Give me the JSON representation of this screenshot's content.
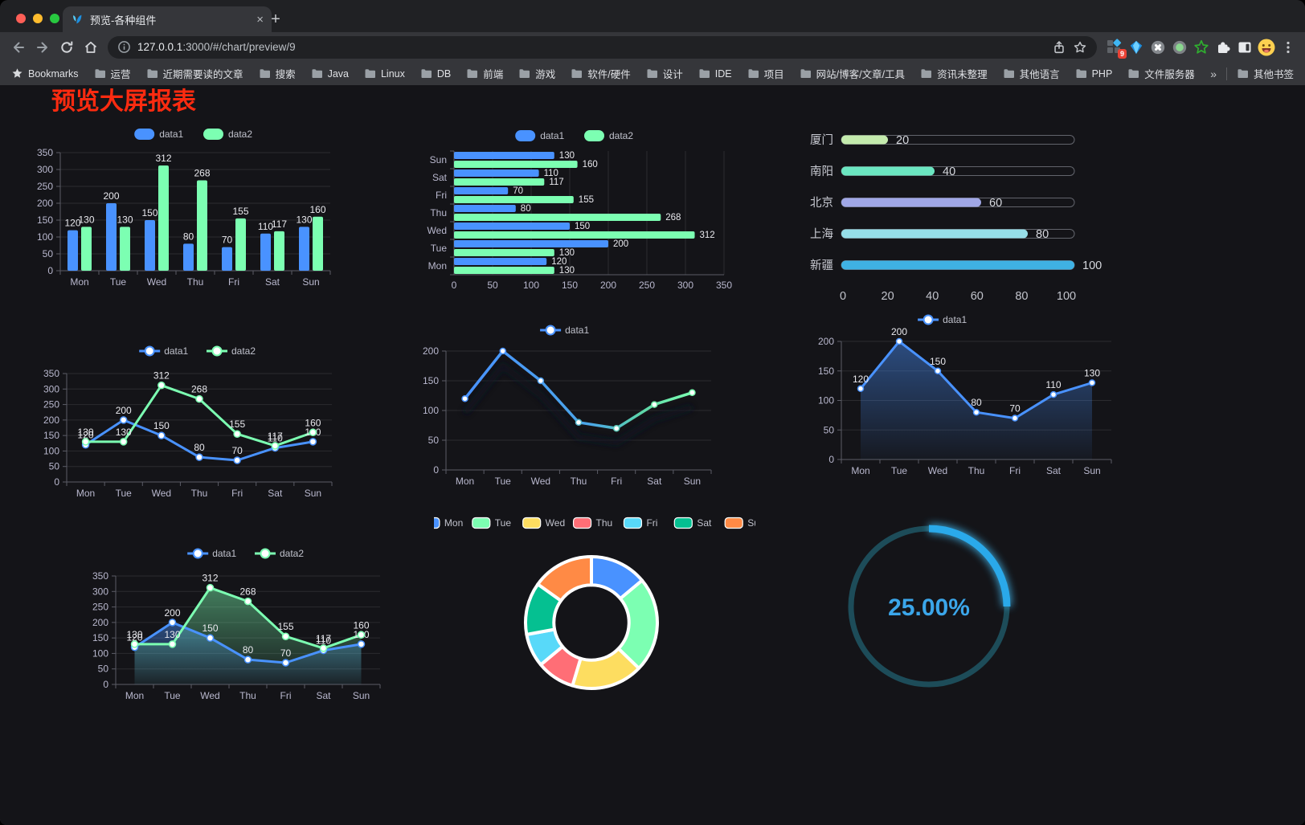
{
  "browser": {
    "tab": {
      "title": "预览-各种组件",
      "close_glyph": "×"
    },
    "new_tab_glyph": "+",
    "url_host": "127.0.0.1",
    "url_path": ":3000/#/chart/preview/9",
    "extension_badge": "9",
    "bookmarks_label": "Bookmarks",
    "bookmarks": [
      "运营",
      "近期需要读的文章",
      "搜索",
      "Java",
      "Linux",
      "DB",
      "前端",
      "游戏",
      "软件/硬件",
      "设计",
      "IDE",
      "项目",
      "网站/博客/文章/工具",
      "资讯未整理",
      "其他语言",
      "PHP",
      "文件服务器"
    ],
    "bookmarks_overflow": "»",
    "other_bookmarks": "其他书签"
  },
  "page": {
    "title": "预览大屏报表",
    "title_color": "#fd2b10"
  },
  "palette": {
    "data1": "#4992ff",
    "data2": "#7cffb2",
    "axis_text": "#b9b8ce",
    "value_text": "#e9e9ee",
    "grid": "rgba(255,255,255,0.10)",
    "axis_line": "#6e7079"
  },
  "chart_data": [
    {
      "id": "bar-vertical-grouped",
      "type": "bar",
      "categories": [
        "Mon",
        "Tue",
        "Wed",
        "Thu",
        "Fri",
        "Sat",
        "Sun"
      ],
      "series": [
        {
          "name": "data1",
          "color": "#4992ff",
          "values": [
            120,
            200,
            150,
            80,
            70,
            110,
            130
          ]
        },
        {
          "name": "data2",
          "color": "#7cffb2",
          "values": [
            130,
            130,
            312,
            268,
            155,
            117,
            160
          ]
        }
      ],
      "ylim": [
        0,
        350
      ],
      "ytick_step": 50,
      "legend_position": "top"
    },
    {
      "id": "bar-horizontal-grouped",
      "type": "bar",
      "orientation": "horizontal",
      "categories": [
        "Mon",
        "Tue",
        "Wed",
        "Thu",
        "Fri",
        "Sat",
        "Sun"
      ],
      "series": [
        {
          "name": "data1",
          "color": "#4992ff",
          "values": [
            120,
            200,
            150,
            80,
            70,
            110,
            130
          ]
        },
        {
          "name": "data2",
          "color": "#7cffb2",
          "values": [
            130,
            130,
            312,
            268,
            155,
            117,
            160
          ]
        }
      ],
      "xlim": [
        0,
        350
      ],
      "xtick_step": 50,
      "legend_position": "top"
    },
    {
      "id": "progress-bars",
      "type": "bar",
      "orientation": "horizontal",
      "categories": [
        "厦门",
        "南阳",
        "北京",
        "上海",
        "新疆"
      ],
      "values": [
        20,
        40,
        60,
        80,
        100
      ],
      "colors": [
        "#c4ebad",
        "#6be6c1",
        "#a0a7e6",
        "#96dee8",
        "#3fb1e3"
      ],
      "xlim": [
        0,
        100
      ],
      "xticks": [
        0,
        20,
        40,
        60,
        80,
        100
      ]
    },
    {
      "id": "line-two-series",
      "type": "line",
      "categories": [
        "Mon",
        "Tue",
        "Wed",
        "Thu",
        "Fri",
        "Sat",
        "Sun"
      ],
      "series": [
        {
          "name": "data1",
          "color": "#4992ff",
          "values": [
            120,
            200,
            150,
            80,
            70,
            110,
            130
          ]
        },
        {
          "name": "data2",
          "color": "#7cffb2",
          "values": [
            130,
            130,
            312,
            268,
            155,
            117,
            160
          ]
        }
      ],
      "ylim": [
        0,
        350
      ],
      "ytick_step": 50,
      "legend_position": "top"
    },
    {
      "id": "line-gradient",
      "type": "line",
      "categories": [
        "Mon",
        "Tue",
        "Wed",
        "Thu",
        "Fri",
        "Sat",
        "Sun"
      ],
      "series": [
        {
          "name": "data1",
          "color_gradient": [
            "#4992ff",
            "#7cffb2"
          ],
          "values": [
            120,
            200,
            150,
            80,
            70,
            110,
            130
          ]
        }
      ],
      "ylim": [
        0,
        200
      ],
      "ytick_step": 50,
      "legend_position": "top"
    },
    {
      "id": "area-single",
      "type": "area",
      "categories": [
        "Mon",
        "Tue",
        "Wed",
        "Thu",
        "Fri",
        "Sat",
        "Sun"
      ],
      "series": [
        {
          "name": "data1",
          "color": "#4992ff",
          "values": [
            120,
            200,
            150,
            80,
            70,
            110,
            130
          ]
        }
      ],
      "ylim": [
        0,
        200
      ],
      "ytick_step": 50,
      "legend_position": "top"
    },
    {
      "id": "area-two-series",
      "type": "area",
      "categories": [
        "Mon",
        "Tue",
        "Wed",
        "Thu",
        "Fri",
        "Sat",
        "Sun"
      ],
      "series": [
        {
          "name": "data1",
          "color": "#4992ff",
          "values": [
            120,
            200,
            150,
            80,
            70,
            110,
            130
          ]
        },
        {
          "name": "data2",
          "color": "#7cffb2",
          "values": [
            130,
            130,
            312,
            268,
            155,
            117,
            160
          ]
        }
      ],
      "ylim": [
        0,
        350
      ],
      "ytick_step": 50,
      "legend_position": "top"
    },
    {
      "id": "donut",
      "type": "pie",
      "categories": [
        "Mon",
        "Tue",
        "Wed",
        "Thu",
        "Fri",
        "Sat",
        "Sun"
      ],
      "values": [
        120,
        200,
        150,
        80,
        70,
        110,
        130
      ],
      "colors": [
        "#4992ff",
        "#7cffb2",
        "#fddd60",
        "#ff6e76",
        "#58d9f9",
        "#05c091",
        "#ff8a45"
      ],
      "inner_radius_ratio": 0.57,
      "border_color": "#ffffff",
      "legend_position": "top"
    },
    {
      "id": "gauge",
      "type": "gauge",
      "value": 25,
      "label": "25.00%",
      "progress_color": "#2aa9ea",
      "track_color": "#1d4c59",
      "text_color": "#3ba6ea"
    }
  ]
}
